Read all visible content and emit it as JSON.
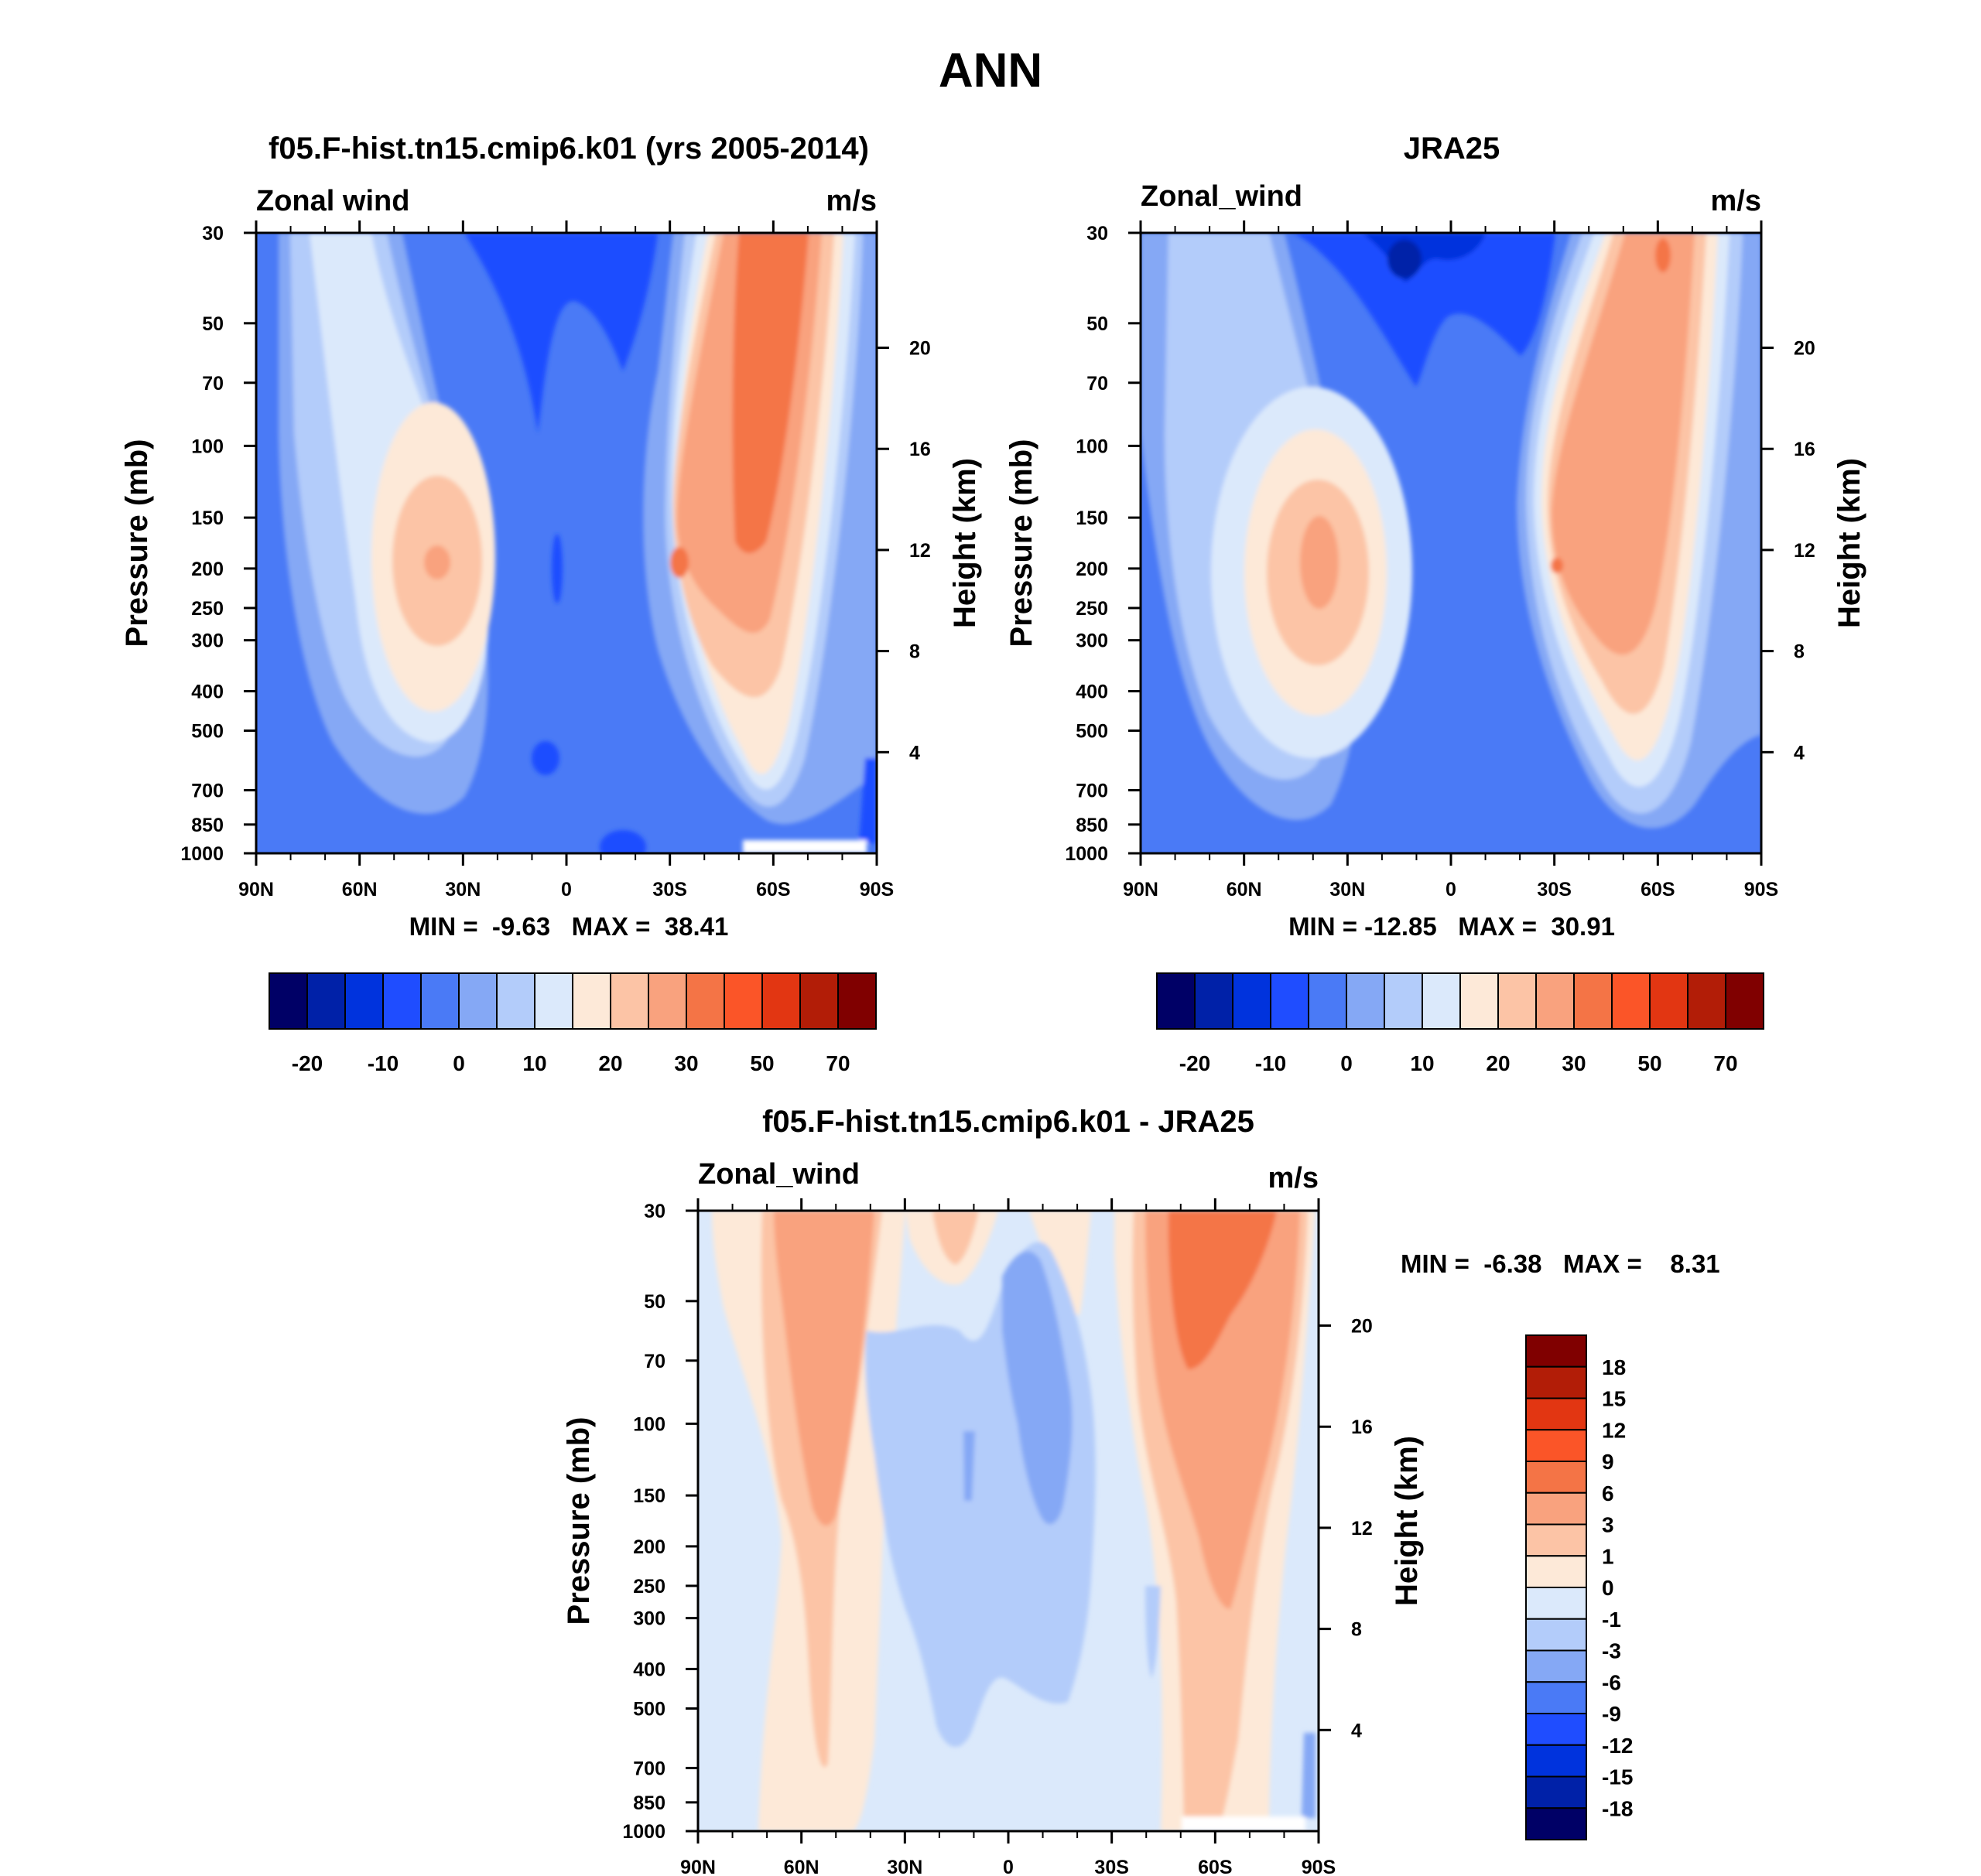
{
  "main_title": "ANN",
  "panels": [
    {
      "title": "f05.F-hist.tn15.cmip6.k01 (yrs 2005-2014)",
      "left_label": "Zonal wind",
      "right_label": "m/s",
      "minmax_text": "MIN =  -9.63   MAX =  38.41",
      "ylabel": "Pressure (mb)",
      "ylabel_right": "Height (km)"
    },
    {
      "title": "JRA25",
      "left_label": "Zonal_wind",
      "right_label": "m/s",
      "minmax_text": "MIN = -12.85   MAX =  30.91",
      "ylabel": "Pressure (mb)",
      "ylabel_right": "Height (km)"
    },
    {
      "title": "f05.F-hist.tn15.cmip6.k01 - JRA25",
      "left_label": "Zonal_wind",
      "right_label": "m/s",
      "minmax_text": "MIN =  -6.38   MAX =    8.31",
      "ylabel": "Pressure (mb)",
      "ylabel_right": "Height (km)"
    }
  ],
  "colors": {
    "top_levels": [
      "#000066",
      "#0021a8",
      "#0033dd",
      "#1f4dff",
      "#4a7af6",
      "#85a8f5",
      "#b3ccfa",
      "#dbe9fb",
      "#fde9d8",
      "#fcc4a6",
      "#f9a27e",
      "#f47446",
      "#fb5528",
      "#e23612",
      "#b21d07",
      "#800000"
    ],
    "diff_levels": [
      "#000066",
      "#0021a8",
      "#0033dd",
      "#1f4dff",
      "#4a7af6",
      "#85a8f5",
      "#b3ccfa",
      "#dbe9fb",
      "#fde9d8",
      "#fcc4a6",
      "#f9a27e",
      "#f47446",
      "#fb5528",
      "#e23612",
      "#b21d07",
      "#800000"
    ]
  },
  "chart_data": [
    {
      "type": "contour",
      "title": "f05.F-hist.tn15.cmip6.k01 (yrs 2005-2014)",
      "variable": "Zonal wind",
      "units": "m/s",
      "xlabel": "",
      "ylabel": "Pressure (mb)",
      "ylabel_right": "Height (km)",
      "x_ticks": [
        "90N",
        "60N",
        "30N",
        "0",
        "30S",
        "60S",
        "90S"
      ],
      "y_ticks": [
        30,
        50,
        70,
        100,
        150,
        200,
        250,
        300,
        400,
        500,
        700,
        850,
        1000
      ],
      "y_scale": "log",
      "ylim": [
        1000,
        30
      ],
      "right_ticks": [
        4,
        8,
        12,
        16,
        20
      ],
      "contour_levels": [
        -25,
        -20,
        -15,
        -10,
        -5,
        0,
        5,
        10,
        15,
        20,
        25,
        30,
        40,
        50,
        60,
        70
      ],
      "colorbar_labels": [
        "-20",
        "-10",
        "0",
        "10",
        "20",
        "30",
        "50",
        "70"
      ],
      "min": -9.63,
      "max": 38.41,
      "features": [
        {
          "name": "northern jet",
          "lat": 37,
          "lev": 200,
          "peak": 22
        },
        {
          "name": "southern jet",
          "lat": -42,
          "lev": 200,
          "peak": 24
        },
        {
          "name": "southern stratospheric jet",
          "lat": -60,
          "lev": 50,
          "peak": 35
        },
        {
          "name": "tropical easterlies",
          "lat": 0,
          "lev": 30,
          "peak": -8
        }
      ]
    },
    {
      "type": "contour",
      "title": "JRA25",
      "variable": "Zonal_wind",
      "units": "m/s",
      "xlabel": "",
      "ylabel": "Pressure (mb)",
      "ylabel_right": "Height (km)",
      "x_ticks": [
        "90N",
        "60N",
        "30N",
        "0",
        "30S",
        "60S",
        "90S"
      ],
      "y_ticks": [
        30,
        50,
        70,
        100,
        150,
        200,
        250,
        300,
        400,
        500,
        700,
        850,
        1000
      ],
      "y_scale": "log",
      "ylim": [
        1000,
        30
      ],
      "right_ticks": [
        4,
        8,
        12,
        16,
        20
      ],
      "contour_levels": [
        -25,
        -20,
        -15,
        -10,
        -5,
        0,
        5,
        10,
        15,
        20,
        25,
        30,
        40,
        50,
        60,
        70
      ],
      "colorbar_labels": [
        "-20",
        "-10",
        "0",
        "10",
        "20",
        "30",
        "50",
        "70"
      ],
      "min": -12.85,
      "max": 30.91,
      "features": [
        {
          "name": "northern jet",
          "lat": 33,
          "lev": 200,
          "peak": 22
        },
        {
          "name": "southern jet",
          "lat": -40,
          "lev": 200,
          "peak": 22
        },
        {
          "name": "southern stratospheric jet",
          "lat": -60,
          "lev": 30,
          "peak": 28
        },
        {
          "name": "tropical easterlies",
          "lat": 0,
          "lev": 30,
          "peak": -12
        }
      ]
    },
    {
      "type": "contour",
      "title": "f05.F-hist.tn15.cmip6.k01 - JRA25",
      "variable": "Zonal_wind",
      "units": "m/s",
      "xlabel": "",
      "ylabel": "Pressure (mb)",
      "ylabel_right": "Height (km)",
      "x_ticks": [
        "90N",
        "60N",
        "30N",
        "0",
        "30S",
        "60S",
        "90S"
      ],
      "y_ticks": [
        30,
        50,
        70,
        100,
        150,
        200,
        250,
        300,
        400,
        500,
        700,
        850,
        1000
      ],
      "y_scale": "log",
      "ylim": [
        1000,
        30
      ],
      "right_ticks": [
        4,
        8,
        12,
        16,
        20
      ],
      "contour_levels": [
        -18,
        -15,
        -12,
        -9,
        -6,
        -3,
        -1,
        0,
        1,
        3,
        6,
        9,
        12,
        15,
        18
      ],
      "colorbar_labels": [
        "18",
        "15",
        "12",
        "9",
        "6",
        "3",
        "1",
        "0",
        "-1",
        "-3",
        "-6",
        "-9",
        "-12",
        "-15",
        "-18"
      ],
      "min": -6.38,
      "max": 8.31
    }
  ]
}
